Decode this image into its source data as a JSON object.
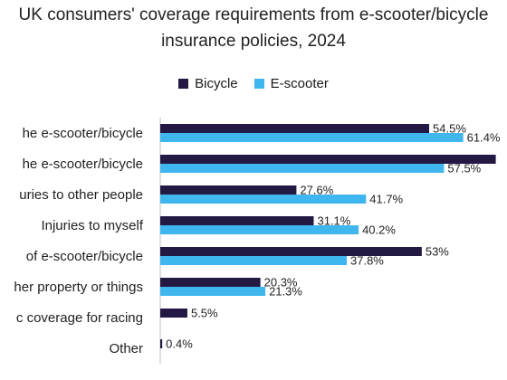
{
  "chart_data": {
    "type": "bar",
    "orientation": "horizontal",
    "title_lines": [
      "UK consumers' coverage requirements from e-scooter/bicycle",
      "insurance policies, 2024"
    ],
    "categories": [
      "he e-scooter/bicycle",
      "he e-scooter/bicycle",
      "uries to other people",
      "Injuries to myself",
      "of e-scooter/bicycle",
      "her property or things",
      "c coverage for racing",
      "Other"
    ],
    "series": [
      {
        "name": "Bicycle",
        "color": "#231942",
        "values": [
          54.5,
          68.0,
          27.6,
          31.1,
          53,
          20.3,
          5.5,
          0.4
        ],
        "labels": [
          "54.5%",
          "",
          "27.6%",
          "31.1%",
          "53%",
          "20.3%",
          "5.5%",
          "0.4%"
        ]
      },
      {
        "name": "E-scooter",
        "color": "#3fb7ee",
        "values": [
          61.4,
          57.5,
          41.7,
          40.2,
          37.8,
          21.3,
          null,
          null
        ],
        "labels": [
          "61.4%",
          "57.5%",
          "41.7%",
          "40.2%",
          "37.8%",
          "21.3%",
          "",
          ""
        ]
      }
    ],
    "xlim": [
      0,
      70
    ],
    "legend_position": "top-center",
    "grid": false
  }
}
